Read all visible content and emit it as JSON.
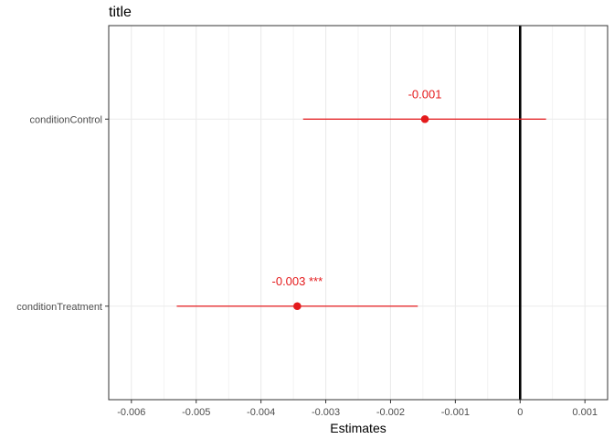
{
  "chart_data": {
    "type": "scatter",
    "title": "title",
    "xlabel": "Estimates",
    "ylabel": "",
    "xlim": [
      -0.00635,
      0.00135
    ],
    "x_ticks": [
      {
        "value": -0.006,
        "label": "-0.006"
      },
      {
        "value": -0.005,
        "label": "-0.005"
      },
      {
        "value": -0.004,
        "label": "-0.004"
      },
      {
        "value": -0.003,
        "label": "-0.003"
      },
      {
        "value": -0.002,
        "label": "-0.002"
      },
      {
        "value": -0.001,
        "label": "-0.001"
      },
      {
        "value": 0,
        "label": "0"
      },
      {
        "value": 0.001,
        "label": "0.001"
      }
    ],
    "categories": [
      "conditionControl",
      "conditionTreatment"
    ],
    "series": [
      {
        "estimates": [
          {
            "term": "conditionControl",
            "estimate": -0.00147,
            "conf_low": -0.00335,
            "conf_high": 0.0004,
            "label": "-0.001"
          },
          {
            "term": "conditionTreatment",
            "estimate": -0.00344,
            "conf_low": -0.0053,
            "conf_high": -0.00158,
            "label": "-0.003 ***"
          }
        ]
      }
    ],
    "reference_line": 0,
    "grid": true,
    "colors": {
      "estimate": "#e41a1c",
      "reference": "#000000",
      "grid": "#ebebeb",
      "panel_border": "#333333"
    }
  }
}
